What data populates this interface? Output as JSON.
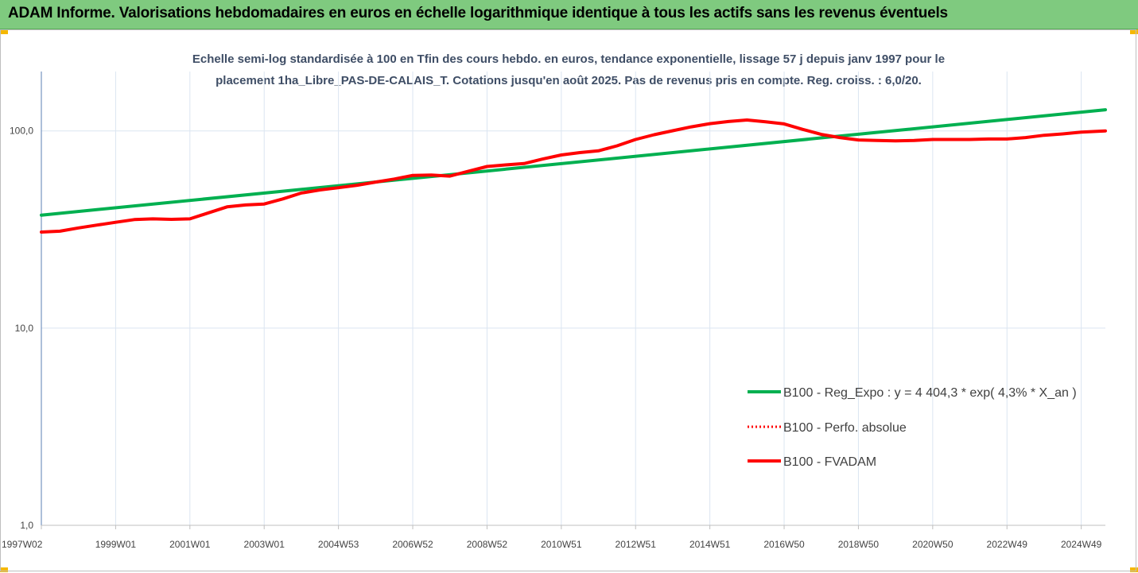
{
  "banner": {
    "title": "ADAM Informe. Valorisations hebdomadaires en euros en échelle logarithmique identique à tous les actifs sans les revenus éventuels"
  },
  "chart_data": {
    "type": "line",
    "title_lines": [
      "Echelle semi-log standardisée à 100 en Tfin des cours hebdo. en euros, tendance exponentielle, lissage 57 j depuis janv 1997 pour le",
      "placement 1ha_Libre_PAS-DE-CALAIS_T. Cotations jusqu'en août 2025. Pas de revenus pris en compte. Reg. croiss. : 6,0/20."
    ],
    "y_scale": "log",
    "ylim": [
      1,
      200
    ],
    "y_ticks": [
      "1,0",
      "10,0",
      "100,0"
    ],
    "y_tick_values": [
      1,
      10,
      100
    ],
    "x_range": [
      1997.0,
      2025.65
    ],
    "x_ticks": [
      "1997W02",
      "1999W01",
      "2001W01",
      "2003W01",
      "2004W53",
      "2006W52",
      "2008W52",
      "2010W51",
      "2012W51",
      "2014W51",
      "2016W50",
      "2018W50",
      "2020W50",
      "2022W49",
      "2024W49"
    ],
    "x_tick_years": [
      1997.0,
      1999.0,
      2001.0,
      2003.0,
      2005.0,
      2007.0,
      2009.0,
      2011.0,
      2013.0,
      2015.0,
      2017.0,
      2019.0,
      2021.0,
      2023.0,
      2025.0
    ],
    "grid": true,
    "legend_position": "right",
    "colors": {
      "green": "#00b050",
      "red": "#ff0000"
    },
    "series": [
      {
        "name": "B100 - Reg_Expo : y = 4 404,3 * exp( 4,3% *  X_an )",
        "color": "#00b050",
        "style": "solid",
        "x": [
          1997.0,
          2025.65
        ],
        "y": [
          37.4,
          128.0
        ]
      },
      {
        "name": "B100 - Perfo. absolue",
        "color": "#ff0000",
        "style": "dotted",
        "x": [],
        "y": []
      },
      {
        "name": "B100 - FVADAM",
        "color": "#ff0000",
        "style": "solid",
        "x": [
          1997.0,
          1997.5,
          1998.0,
          1998.5,
          1999.0,
          1999.5,
          2000.0,
          2000.5,
          2001.0,
          2001.5,
          2002.0,
          2002.5,
          2003.0,
          2003.5,
          2004.0,
          2004.5,
          2005.0,
          2005.5,
          2006.0,
          2006.5,
          2007.0,
          2007.5,
          2008.0,
          2008.5,
          2009.0,
          2009.5,
          2010.0,
          2010.5,
          2011.0,
          2011.5,
          2012.0,
          2012.5,
          2013.0,
          2013.5,
          2014.0,
          2014.5,
          2015.0,
          2015.5,
          2016.0,
          2016.5,
          2017.0,
          2017.5,
          2018.0,
          2018.5,
          2019.0,
          2019.5,
          2020.0,
          2020.5,
          2021.0,
          2021.5,
          2022.0,
          2022.5,
          2023.0,
          2023.5,
          2024.0,
          2024.5,
          2025.0,
          2025.65
        ],
        "y": [
          30.7,
          31.0,
          32.2,
          33.3,
          34.4,
          35.5,
          35.8,
          35.6,
          35.8,
          38.4,
          41.2,
          42.1,
          42.6,
          45.2,
          48.4,
          50.2,
          51.5,
          53.0,
          55.0,
          57.0,
          59.5,
          59.7,
          59.0,
          62.5,
          66.0,
          67.2,
          68.3,
          72.0,
          75.5,
          77.6,
          79.2,
          84.0,
          90.5,
          95.6,
          100.2,
          104.8,
          108.8,
          111.6,
          113.6,
          111.2,
          108.5,
          101.8,
          96.0,
          92.5,
          90.0,
          89.5,
          89.0,
          89.5,
          90.5,
          90.5,
          90.5,
          91.0,
          91.0,
          92.5,
          95.0,
          96.5,
          98.5,
          100.0
        ]
      }
    ]
  }
}
